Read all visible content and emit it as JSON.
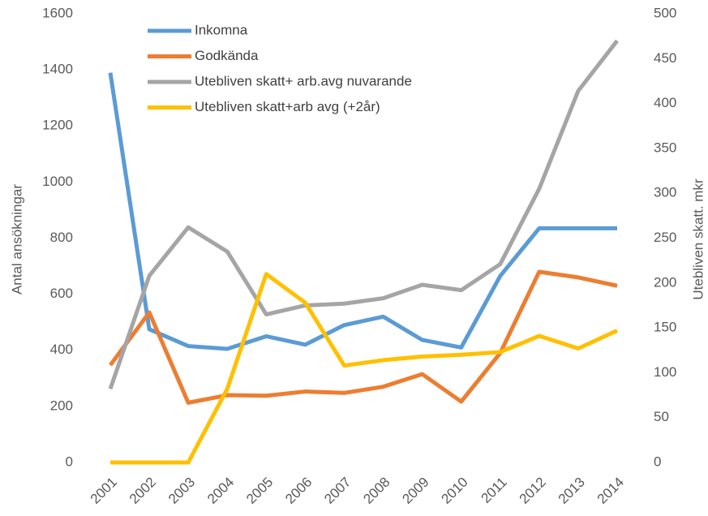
{
  "chart_data": {
    "type": "line",
    "categories": [
      "2001",
      "2002",
      "2003",
      "2004",
      "2005",
      "2006",
      "2007",
      "2008",
      "2009",
      "2010",
      "2011",
      "2012",
      "2013",
      "2014"
    ],
    "ylabel": "Antal ansökningar",
    "y2label": "Utebliven skatt. mkr",
    "ylim": [
      0,
      1600
    ],
    "yticks": [
      0,
      200,
      400,
      600,
      800,
      1000,
      1200,
      1400,
      1600
    ],
    "y2lim": [
      0,
      500
    ],
    "y2ticks": [
      0,
      50,
      100,
      150,
      200,
      250,
      300,
      350,
      400,
      450,
      500
    ],
    "legend": "top-left",
    "series": [
      {
        "name": "Inkomna",
        "color": "#5b9bd5",
        "values": [
          1390,
          475,
          415,
          405,
          450,
          420,
          490,
          520,
          437,
          410,
          665,
          835,
          835,
          835
        ]
      },
      {
        "name": "Godkända",
        "color": "#ed7d31",
        "values": [
          347,
          535,
          213,
          240,
          238,
          253,
          248,
          270,
          315,
          217,
          390,
          680,
          660,
          630
        ]
      },
      {
        "name": "Utebliven skatt+ arb.avg nuvarande",
        "color": "#a5a5a5",
        "axis": "y2",
        "values": [
          82,
          208,
          262,
          235,
          165,
          175,
          177,
          183,
          198,
          192,
          221,
          305,
          414,
          470
        ]
      },
      {
        "name": "Utebliven skatt+arb avg (+2år)",
        "color": "#ffc000",
        "axis": "y2",
        "values": [
          0,
          0,
          0,
          82,
          210,
          178,
          108,
          114,
          118,
          120,
          123,
          141,
          127,
          147
        ]
      }
    ]
  }
}
